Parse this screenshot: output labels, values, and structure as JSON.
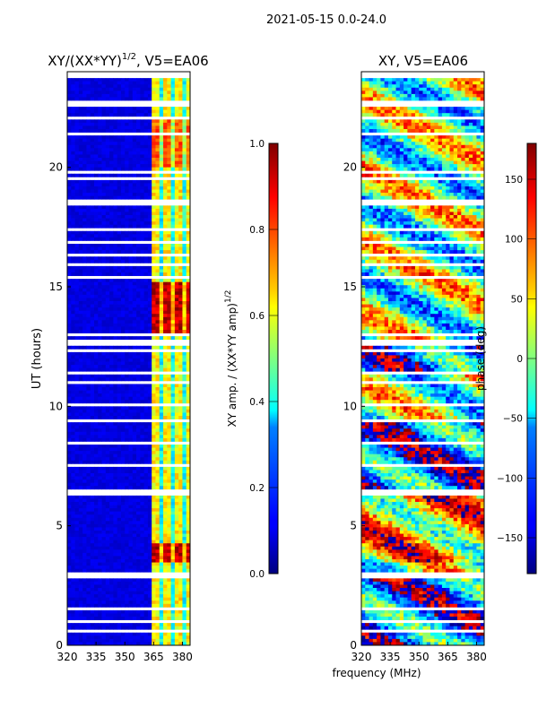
{
  "suptitle": "2021-05-15 0.0-24.0",
  "xlabel": "frequency (MHz)",
  "chart_data": [
    {
      "type": "heatmap",
      "title": "XY/(XX*YY)",
      "title_sup": "1/2",
      "title_suffix": ", V5=EA06",
      "ylabel": "UT (hours)",
      "x_ticks": [
        "320",
        "335",
        "350",
        "365",
        "380"
      ],
      "y_ticks": [
        "0",
        "5",
        "10",
        "15",
        "20"
      ],
      "xlim": [
        320,
        384
      ],
      "ylim": [
        0,
        24
      ],
      "colormap": "jet",
      "colorbar": {
        "label": "XY amp. / (XX*YY amp)",
        "label_sup": "1/2",
        "range": [
          0.0,
          1.0
        ],
        "ticks": [
          "0.0",
          "0.2",
          "0.4",
          "0.6",
          "0.8",
          "1.0"
        ]
      }
    },
    {
      "type": "heatmap",
      "title": "XY, V5=EA06",
      "ylabel": "",
      "x_ticks": [
        "320",
        "335",
        "350",
        "365",
        "380"
      ],
      "y_ticks": [
        "0",
        "5",
        "10",
        "15",
        "20"
      ],
      "xlim": [
        320,
        384
      ],
      "ylim": [
        0,
        24
      ],
      "colormap": "jet",
      "colorbar": {
        "label": "phase (deg)",
        "range": [
          -180,
          180
        ],
        "ticks": [
          "-150",
          "-100",
          "-50",
          "0",
          "50",
          "100",
          "150"
        ]
      }
    }
  ]
}
